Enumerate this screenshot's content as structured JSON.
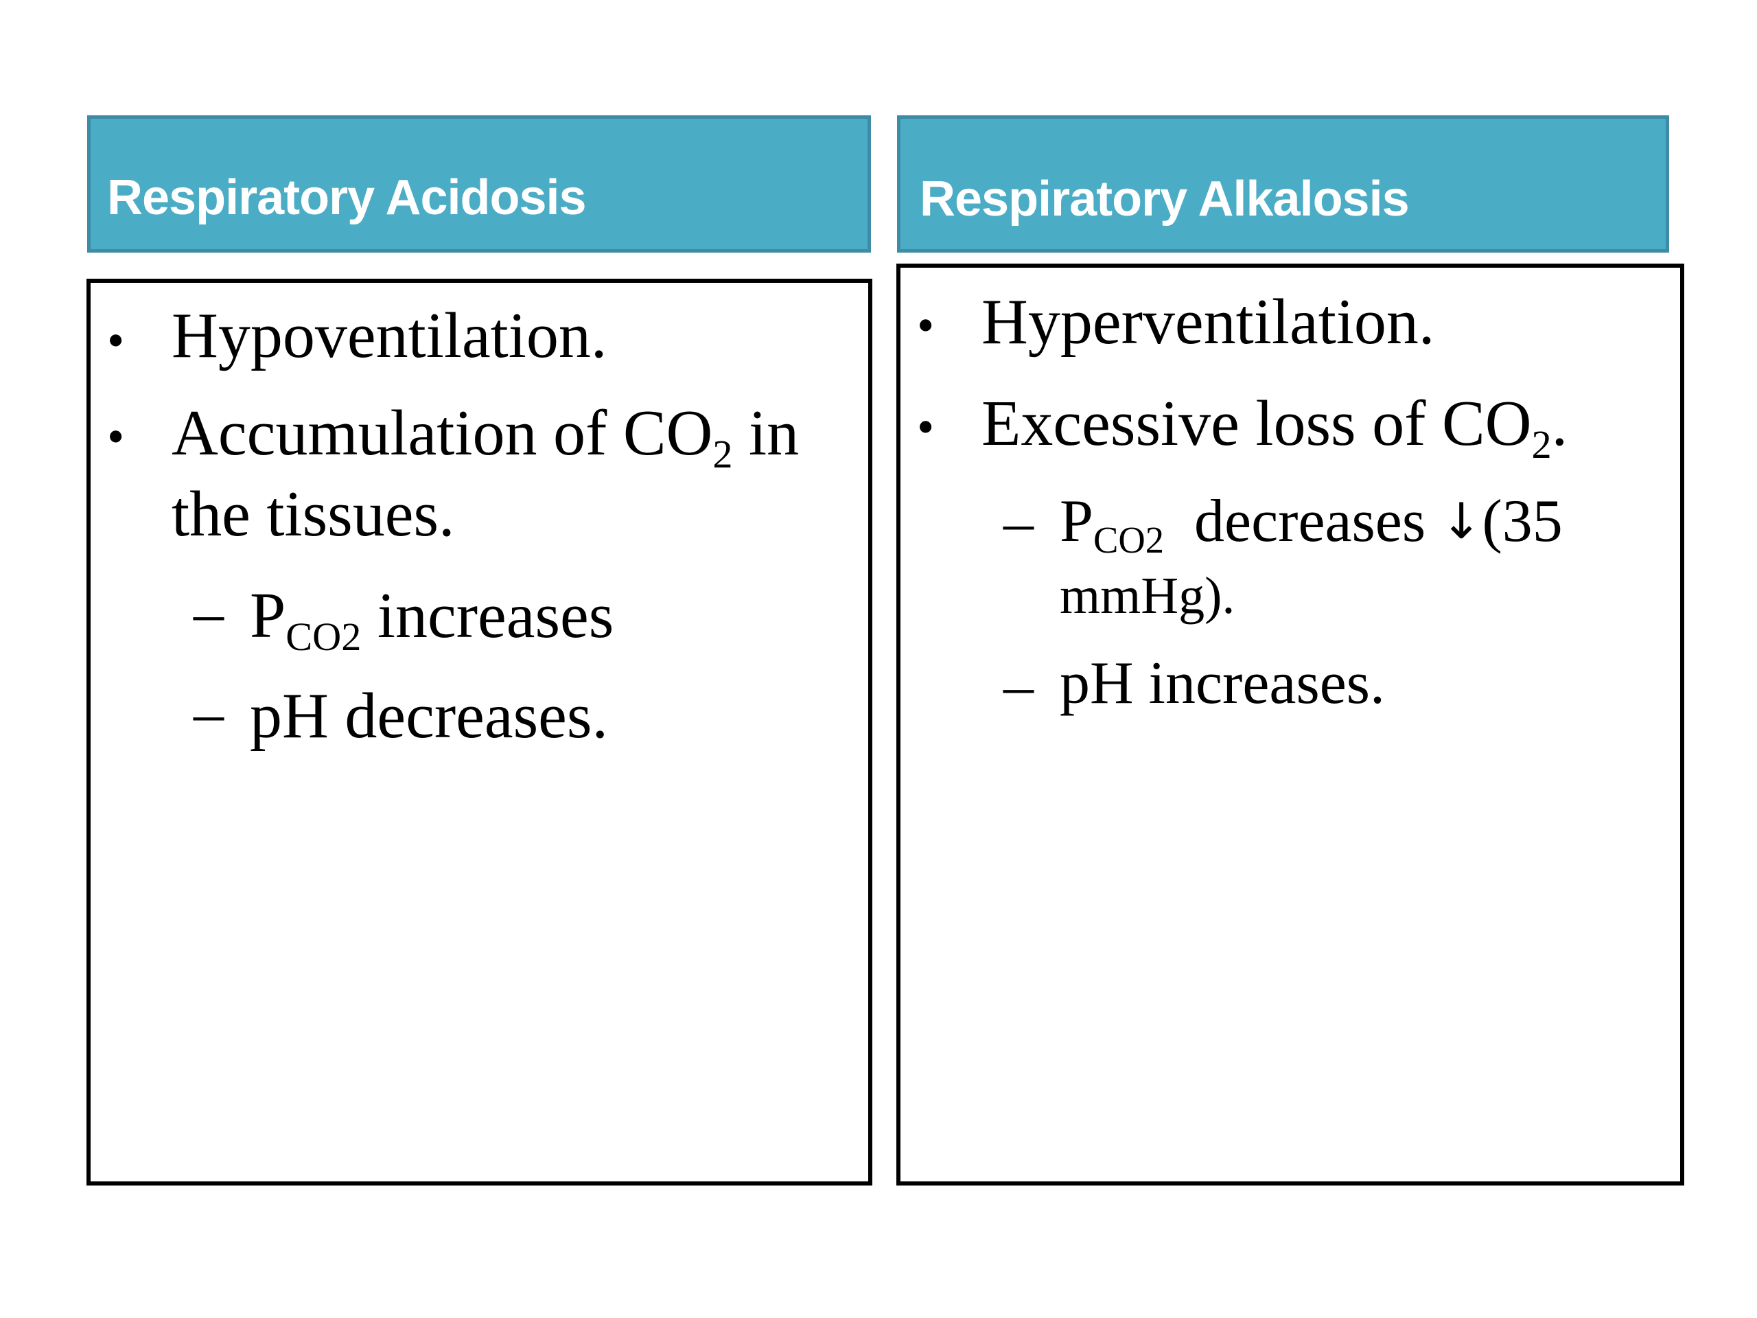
{
  "left": {
    "header": "Respiratory Acidosis",
    "header_color": "#4bacc6",
    "bullet_char": "•",
    "dash_char": "–",
    "bullets": [
      {
        "text": "Hypoventilation."
      },
      {
        "pre": "Accumulation of CO",
        "sub": "2",
        "post": " in",
        "cont": "the tissues."
      }
    ],
    "subbullets": [
      {
        "pre": "P",
        "sub": "CO2",
        "post": " increases"
      },
      {
        "text": "pH decreases."
      }
    ]
  },
  "right": {
    "header": "Respiratory Alkalosis",
    "header_color": "#4bacc6",
    "bullet_char": "•",
    "dash_char": "–",
    "bullets": [
      {
        "text": "Hyperventilation."
      },
      {
        "pre": "Excessive loss of CO",
        "sub": "2",
        "post": "."
      }
    ],
    "subbullets": [
      {
        "pre": "P",
        "sub": "CO2",
        "mid": "  decreases ",
        "arrow": "↓",
        "post": "(35",
        "cont": "mmHg)."
      },
      {
        "text": "pH increases."
      }
    ]
  }
}
